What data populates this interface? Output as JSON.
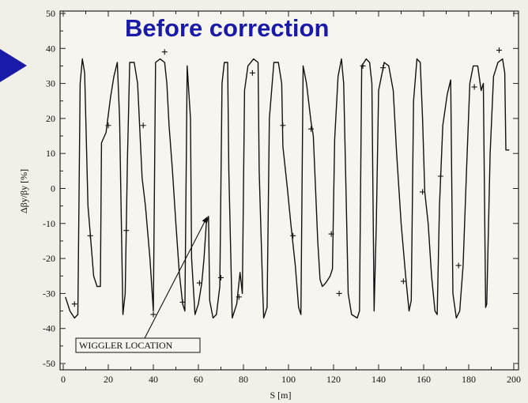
{
  "chart_data": {
    "type": "line",
    "title": "Before correction",
    "xlabel": "S [m]",
    "ylabel": "Δβy/βy [%]",
    "xlim": [
      0,
      200
    ],
    "ylim": [
      -50,
      50
    ],
    "x_ticks": [
      0,
      20,
      40,
      60,
      80,
      100,
      120,
      140,
      160,
      180,
      200
    ],
    "y_ticks": [
      50,
      40,
      30,
      20,
      10,
      0,
      -10,
      -20,
      -30,
      -40,
      -50
    ],
    "grid": false,
    "annotation": {
      "text": "WIGGLER LOCATION",
      "points_to": {
        "x": 64,
        "y": -8
      }
    },
    "series": [
      {
        "style": "solid",
        "points": [
          [
            1,
            -31
          ],
          [
            3,
            -35
          ],
          [
            5,
            -37
          ],
          [
            6.5,
            -36
          ],
          [
            7.5,
            30
          ],
          [
            8.5,
            37
          ],
          [
            9.5,
            33
          ],
          [
            11,
            -5
          ],
          [
            12,
            -13
          ],
          [
            13.5,
            -25
          ],
          [
            15,
            -28
          ],
          [
            16.5,
            -28
          ],
          [
            17,
            13
          ],
          [
            19,
            16
          ],
          [
            21,
            26
          ],
          [
            22.5,
            32
          ],
          [
            24,
            36
          ],
          [
            25,
            20
          ],
          [
            26.5,
            -36
          ],
          [
            27.5,
            -30
          ],
          [
            28.5,
            8
          ],
          [
            29.5,
            36
          ],
          [
            31.5,
            36
          ],
          [
            33,
            30
          ],
          [
            35,
            3
          ],
          [
            36.5,
            -5
          ],
          [
            38.5,
            -20
          ],
          [
            40,
            -35
          ],
          [
            41,
            36
          ],
          [
            43,
            37
          ],
          [
            45,
            36
          ],
          [
            46,
            30
          ],
          [
            47,
            18
          ],
          [
            48.5,
            5
          ],
          [
            50,
            -10
          ],
          [
            51.5,
            -24
          ],
          [
            53,
            -33
          ],
          [
            54,
            -35
          ],
          [
            55,
            35
          ],
          [
            56.5,
            20
          ],
          [
            57,
            -20
          ],
          [
            58.5,
            -36
          ],
          [
            60,
            -33
          ],
          [
            61.5,
            -27
          ],
          [
            62.5,
            -20
          ],
          [
            63.5,
            -10
          ],
          [
            64.5,
            -8
          ],
          [
            65,
            -32
          ],
          [
            66.5,
            -37
          ],
          [
            68,
            -36
          ],
          [
            69.5,
            -28
          ],
          [
            70.5,
            30
          ],
          [
            71.5,
            36
          ],
          [
            73,
            36
          ],
          [
            73.5,
            5
          ],
          [
            75,
            -37
          ],
          [
            77,
            -33
          ],
          [
            78.5,
            -24
          ],
          [
            79.5,
            -30
          ],
          [
            80.5,
            28
          ],
          [
            82,
            35
          ],
          [
            84.5,
            37
          ],
          [
            86.5,
            36
          ],
          [
            87,
            5
          ],
          [
            88.5,
            -28
          ],
          [
            89,
            -37
          ],
          [
            90.5,
            -34
          ],
          [
            91.5,
            20
          ],
          [
            93.5,
            36
          ],
          [
            95.5,
            36
          ],
          [
            97,
            30
          ],
          [
            97.5,
            12
          ],
          [
            99.5,
            0
          ],
          [
            101,
            -10
          ],
          [
            103,
            -22
          ],
          [
            104.5,
            -34
          ],
          [
            105.5,
            -36
          ],
          [
            106.5,
            35
          ],
          [
            108,
            30
          ],
          [
            110,
            19
          ],
          [
            111,
            15
          ],
          [
            112,
            0
          ],
          [
            113,
            -15
          ],
          [
            114,
            -26
          ],
          [
            115,
            -28
          ],
          [
            116.5,
            -27
          ],
          [
            117.5,
            -26
          ],
          [
            118.5,
            -25
          ],
          [
            119.5,
            -23
          ],
          [
            120.5,
            14
          ],
          [
            122,
            32
          ],
          [
            123.5,
            37
          ],
          [
            124.5,
            30
          ],
          [
            125.5,
            0
          ],
          [
            126.5,
            -30
          ],
          [
            128,
            -36
          ],
          [
            130.5,
            -37
          ],
          [
            131.5,
            -35
          ],
          [
            132.5,
            35
          ],
          [
            134.5,
            37
          ],
          [
            136,
            36
          ],
          [
            137,
            30
          ],
          [
            138,
            -35
          ],
          [
            139,
            -10
          ],
          [
            140,
            28
          ],
          [
            142.5,
            36
          ],
          [
            144.5,
            35
          ],
          [
            146.5,
            28
          ],
          [
            148,
            10
          ],
          [
            150,
            -10
          ],
          [
            152,
            -25
          ],
          [
            153.5,
            -35
          ],
          [
            154.5,
            -32
          ],
          [
            155.5,
            25
          ],
          [
            157,
            37
          ],
          [
            158.5,
            36
          ],
          [
            159.5,
            20
          ],
          [
            160.5,
            -1
          ],
          [
            162,
            -10
          ],
          [
            163.5,
            -25
          ],
          [
            165,
            -35
          ],
          [
            166,
            -36
          ],
          [
            167,
            -5
          ],
          [
            168.5,
            18
          ],
          [
            170.5,
            27
          ],
          [
            172,
            31
          ],
          [
            173,
            -30
          ],
          [
            174.5,
            -37
          ],
          [
            176,
            -35
          ],
          [
            177.5,
            -22
          ],
          [
            179,
            5
          ],
          [
            180.5,
            30
          ],
          [
            182,
            35
          ],
          [
            184,
            35
          ],
          [
            185.5,
            28
          ],
          [
            186.5,
            30
          ],
          [
            187.5,
            -34
          ],
          [
            188,
            -33
          ],
          [
            189.5,
            10
          ],
          [
            191,
            32
          ],
          [
            193,
            36
          ],
          [
            195,
            37
          ],
          [
            196,
            33
          ],
          [
            196.5,
            11
          ],
          [
            198,
            11
          ]
        ]
      },
      {
        "style": "plus-markers",
        "points": [
          [
            5,
            -33
          ],
          [
            12,
            -13.5
          ],
          [
            20,
            18
          ],
          [
            28,
            -12
          ],
          [
            35.5,
            18
          ],
          [
            40,
            -36
          ],
          [
            45,
            39
          ],
          [
            53,
            -32.5
          ],
          [
            60.5,
            -27
          ],
          [
            70,
            -25.5
          ],
          [
            78,
            -31
          ],
          [
            84,
            33
          ],
          [
            97.5,
            18
          ],
          [
            102,
            -13.5
          ],
          [
            110,
            17
          ],
          [
            119,
            -13
          ],
          [
            122.5,
            -30
          ],
          [
            133,
            35
          ],
          [
            142,
            34.5
          ],
          [
            151,
            -26.5
          ],
          [
            159.5,
            -1
          ],
          [
            167.5,
            3.5
          ],
          [
            175.5,
            -22
          ],
          [
            182.5,
            29
          ],
          [
            193.5,
            39.5
          ]
        ]
      }
    ]
  }
}
